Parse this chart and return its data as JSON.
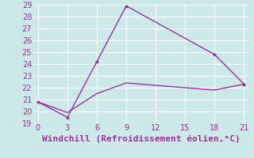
{
  "line1_x": [
    0,
    3,
    6,
    9,
    18,
    21
  ],
  "line1_y": [
    20.8,
    19.5,
    24.2,
    28.9,
    24.8,
    22.3
  ],
  "line2_x": [
    0,
    3,
    6,
    9,
    18,
    21
  ],
  "line2_y": [
    20.8,
    19.9,
    21.5,
    22.4,
    21.8,
    22.3
  ],
  "line_color": "#993399",
  "bg_color": "#cce8e8",
  "grid_color": "#ffffff",
  "xlabel": "Windchill (Refroidissement éolien,°C)",
  "xlim": [
    -0.5,
    21.5
  ],
  "ylim": [
    19,
    29
  ],
  "xticks": [
    0,
    3,
    6,
    9,
    12,
    15,
    18,
    21
  ],
  "yticks": [
    19,
    20,
    21,
    22,
    23,
    24,
    25,
    26,
    27,
    28,
    29
  ],
  "xlabel_color": "#993399",
  "tick_color": "#993399",
  "xlabel_fontsize": 8,
  "tick_fontsize": 7
}
